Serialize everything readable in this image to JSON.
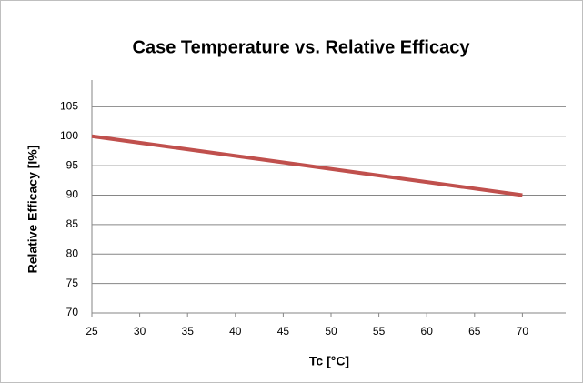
{
  "chart_data": {
    "type": "line",
    "title": "Case Temperature vs. Relative Efficacy",
    "x_label": "Tc [°C]",
    "y_label": "Relative Efficacy [I%]",
    "x": [
      25,
      70
    ],
    "series": [
      {
        "name": "Relative Efficacy",
        "color": "#c0504d",
        "values": [
          100,
          90
        ]
      }
    ],
    "xlim": [
      25,
      75
    ],
    "xticks": [
      25,
      30,
      35,
      40,
      45,
      50,
      55,
      60,
      65,
      70
    ],
    "ylim": [
      70,
      110
    ],
    "yticks": [
      70,
      75,
      80,
      85,
      90,
      95,
      100,
      105
    ],
    "grid": true
  }
}
